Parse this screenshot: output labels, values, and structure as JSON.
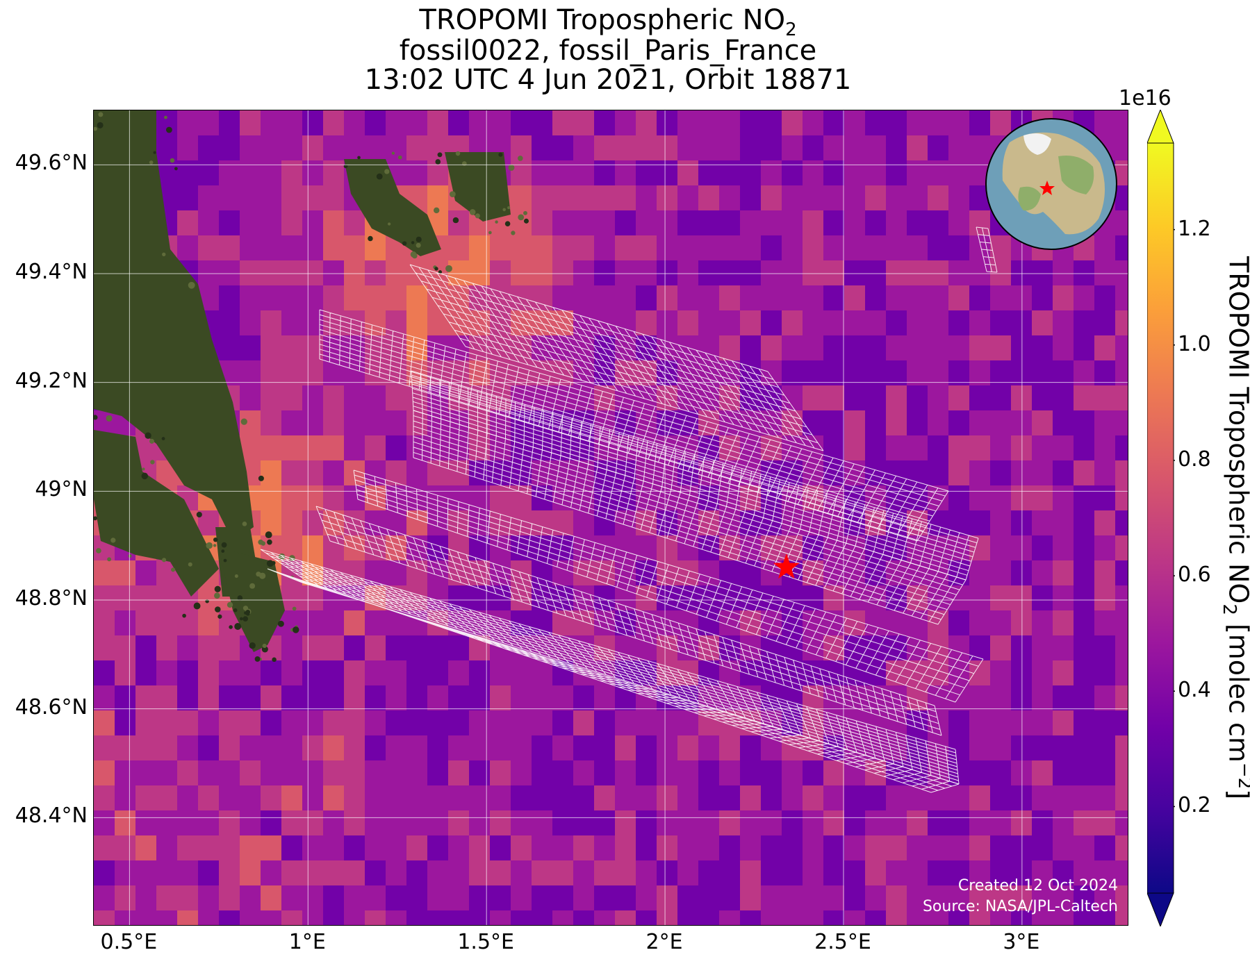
{
  "title": {
    "line1_prefix": "TROPOMI Tropospheric NO",
    "line1_sub": "2",
    "line2": "fossil0022, fossil_Paris_France",
    "line3": "13:02 UTC 4 Jun 2021, Orbit 18871"
  },
  "map": {
    "lon_range": [
      0.4,
      3.3
    ],
    "lat_range": [
      48.2,
      49.7
    ],
    "lat_ticks": [
      {
        "value": 49.6,
        "label": "49.6°N"
      },
      {
        "value": 49.4,
        "label": "49.4°N"
      },
      {
        "value": 49.2,
        "label": "49.2°N"
      },
      {
        "value": 49.0,
        "label": "49°N"
      },
      {
        "value": 48.8,
        "label": "48.8°N"
      },
      {
        "value": 48.6,
        "label": "48.6°N"
      },
      {
        "value": 48.4,
        "label": "48.4°N"
      }
    ],
    "lon_ticks": [
      {
        "value": 0.5,
        "label": "0.5°E"
      },
      {
        "value": 1.0,
        "label": "1°E"
      },
      {
        "value": 1.5,
        "label": "1.5°E"
      },
      {
        "value": 2.0,
        "label": "2°E"
      },
      {
        "value": 2.5,
        "label": "2.5°E"
      },
      {
        "value": 3.0,
        "label": "3°E"
      }
    ],
    "target_site": {
      "lon": 2.34,
      "lat": 48.86,
      "color": "#ff0000"
    },
    "inset_globe": {
      "marker_color": "#ff0000"
    },
    "credit_line1": "Created 12 Oct 2024",
    "credit_line2": "Source: NASA/JPL-Caltech"
  },
  "colorbar": {
    "exponent_label": "1e16",
    "label_prefix": "TROPOMI Tropospheric NO",
    "label_sub": "2",
    "label_suffix": " [molec cm",
    "label_sup": "−2",
    "label_end": "]",
    "range": [
      0.05,
      1.35
    ],
    "ticks": [
      {
        "value": 0.2,
        "label": "0.2"
      },
      {
        "value": 0.4,
        "label": "0.4"
      },
      {
        "value": 0.6,
        "label": "0.6"
      },
      {
        "value": 0.8,
        "label": "0.8"
      },
      {
        "value": 1.0,
        "label": "1.0"
      },
      {
        "value": 1.2,
        "label": "1.2"
      }
    ],
    "colormap": "plasma",
    "colors": [
      "#0d0887",
      "#46039f",
      "#7201a8",
      "#9c179e",
      "#bd3786",
      "#d8576b",
      "#ed7953",
      "#fb9f3a",
      "#fdca26",
      "#f0f921"
    ]
  }
}
